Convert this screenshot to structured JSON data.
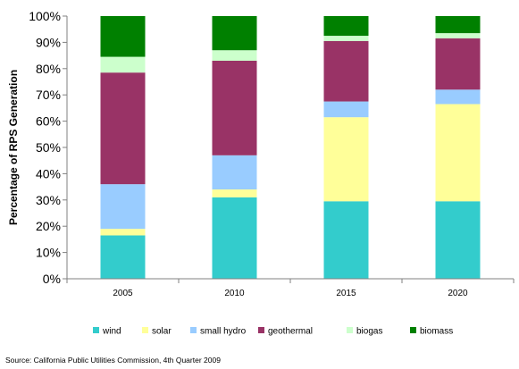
{
  "chart_data": {
    "type": "bar",
    "stacked": true,
    "title": "",
    "xlabel": "",
    "ylabel": "Percentage of RPS Generation",
    "ylim": [
      0,
      100
    ],
    "y_ticks": [
      "0%",
      "10%",
      "20%",
      "30%",
      "40%",
      "50%",
      "60%",
      "70%",
      "80%",
      "90%",
      "100%"
    ],
    "categories": [
      "2005",
      "2010",
      "2015",
      "2020"
    ],
    "series": [
      {
        "name": "wind",
        "color": "#33cccc",
        "values": [
          16.5,
          31,
          29.5,
          29.5
        ]
      },
      {
        "name": "solar",
        "color": "#ffff99",
        "values": [
          2.5,
          3,
          32,
          37
        ]
      },
      {
        "name": "small hydro",
        "color": "#99ccff",
        "values": [
          17,
          13,
          6,
          5.5
        ]
      },
      {
        "name": "geothermal",
        "color": "#993366",
        "values": [
          42.5,
          36,
          23,
          19.5
        ]
      },
      {
        "name": "biogas",
        "color": "#ccffcc",
        "values": [
          6,
          4,
          2,
          2
        ]
      },
      {
        "name": "biomass",
        "color": "#008000",
        "values": [
          15.5,
          13,
          7.5,
          6.5
        ]
      }
    ],
    "grid": false,
    "legend_position": "bottom"
  },
  "source_text": "Source: California Public Utilities Commission, 4th Quarter 2009"
}
